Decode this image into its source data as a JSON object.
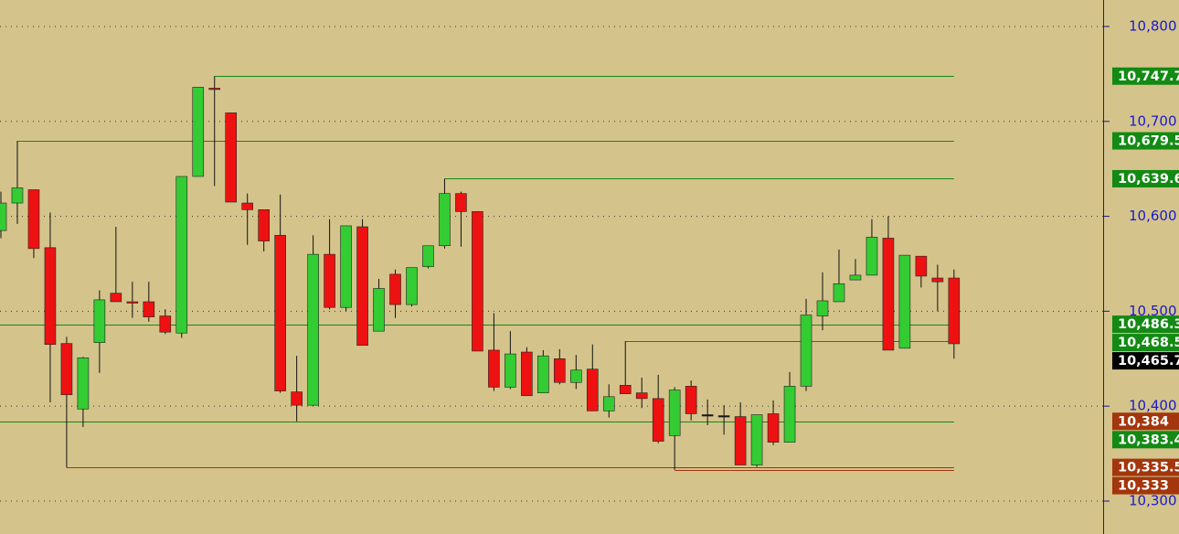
{
  "chart_data": {
    "type": "candlestick",
    "open": [
      10585,
      10614,
      10628,
      10567,
      10466,
      10397,
      10467,
      10519,
      10510,
      10510,
      10495,
      10477,
      10642,
      10735,
      10709,
      10614,
      10607,
      10580,
      10415,
      10401,
      10560,
      10504,
      10589,
      10479,
      10539,
      10507,
      10547,
      10569,
      10624,
      10605,
      10459,
      10420,
      10457,
      10414,
      10450,
      10425,
      10439,
      10395,
      10422,
      10414,
      10408,
      10369,
      10421,
      10391,
      10390,
      10389,
      10338,
      10392,
      10362,
      10421,
      10495,
      10510,
      10533,
      10538,
      10577,
      10461,
      10558,
      10535,
      10535
    ],
    "high": [
      10626,
      10679.5,
      10628,
      10604,
      10473,
      10452,
      10522,
      10589,
      10531,
      10531,
      10502,
      10642,
      10736,
      10747.7,
      10709,
      10624,
      10607,
      10623,
      10453,
      10580,
      10597,
      10590,
      10597,
      10534,
      10544,
      10546,
      10569,
      10639.6,
      10626,
      10605,
      10498,
      10479,
      10462,
      10459,
      10460,
      10454,
      10465,
      10423,
      10468.5,
      10430,
      10433,
      10420,
      10427,
      10407,
      10401,
      10404,
      10391,
      10406,
      10436,
      10513,
      10541,
      10565,
      10555,
      10597,
      10600,
      10559,
      10558,
      10549,
      10544
    ],
    "low": [
      10577,
      10592,
      10556,
      10404,
      10335.5,
      10378,
      10435,
      10510,
      10493,
      10489,
      10476,
      10472,
      10642,
      10632,
      10615,
      10570,
      10563,
      10414,
      10384,
      10401,
      10502,
      10500,
      10464,
      10479,
      10493,
      10505,
      10545,
      10566,
      10568,
      10458,
      10416,
      10418,
      10411,
      10414,
      10423,
      10418,
      10395,
      10388,
      10413,
      10398,
      10361,
      10333,
      10385,
      10380,
      10370,
      10338,
      10336,
      10359,
      10362,
      10416,
      10480,
      10510,
      10533,
      10538,
      10459,
      10461,
      10525,
      10500,
      10450
    ],
    "close": [
      10614,
      10630,
      10566,
      10465,
      10412,
      10451,
      10512,
      10510,
      10509,
      10494,
      10478,
      10642,
      10736,
      10734,
      10615,
      10607,
      10574,
      10416,
      10401,
      10560,
      10504,
      10590,
      10464,
      10524,
      10507,
      10546,
      10569,
      10624,
      10605,
      10458,
      10420,
      10455,
      10411,
      10453,
      10425,
      10438,
      10395,
      10410,
      10413,
      10408,
      10363,
      10417,
      10392,
      10391,
      10390,
      10338,
      10391,
      10362,
      10421,
      10496,
      10511,
      10529,
      10538,
      10578,
      10459,
      10559,
      10537,
      10531,
      10465.7
    ],
    "up_color": "#33cc33",
    "down_color": "#ee1111",
    "ylim": [
      10265.3,
      10827.9
    ],
    "yticks": [
      {
        "value": 10300,
        "label": "10,300"
      },
      {
        "value": 10400,
        "label": "10,400"
      },
      {
        "value": 10500,
        "label": "10,500"
      },
      {
        "value": 10600,
        "label": "10,600"
      },
      {
        "value": 10700,
        "label": "10,700"
      },
      {
        "value": 10800,
        "label": "10,800"
      }
    ],
    "grid": true,
    "levels": [
      {
        "value": 10747.7,
        "label": "10,747.7",
        "color": "#138a13",
        "line": true
      },
      {
        "value": 10679.5,
        "label": "10,679.5",
        "color": "#138a13",
        "line": true
      },
      {
        "value": 10639.6,
        "label": "10,639.6",
        "color": "#138a13",
        "line": true
      },
      {
        "value": 10486.3,
        "label": "10,486.3",
        "color": "#138a13",
        "line": true
      },
      {
        "value": 10468.5,
        "label": "10,468.5",
        "color": "#138a13",
        "line": true
      },
      {
        "value": 10465.7,
        "label": "10,465.7",
        "color": "#000000",
        "line": false
      },
      {
        "value": 10384,
        "label": "10,384",
        "color": "#a3360c",
        "line": true
      },
      {
        "value": 10383.4,
        "label": "10,383.4",
        "color": "#138a13",
        "line": true
      },
      {
        "value": 10335.5,
        "label": "10,335.5",
        "color": "#a3360c",
        "line": true
      },
      {
        "value": 10333,
        "label": "10,333",
        "color": "#a3360c",
        "line": true
      }
    ]
  }
}
